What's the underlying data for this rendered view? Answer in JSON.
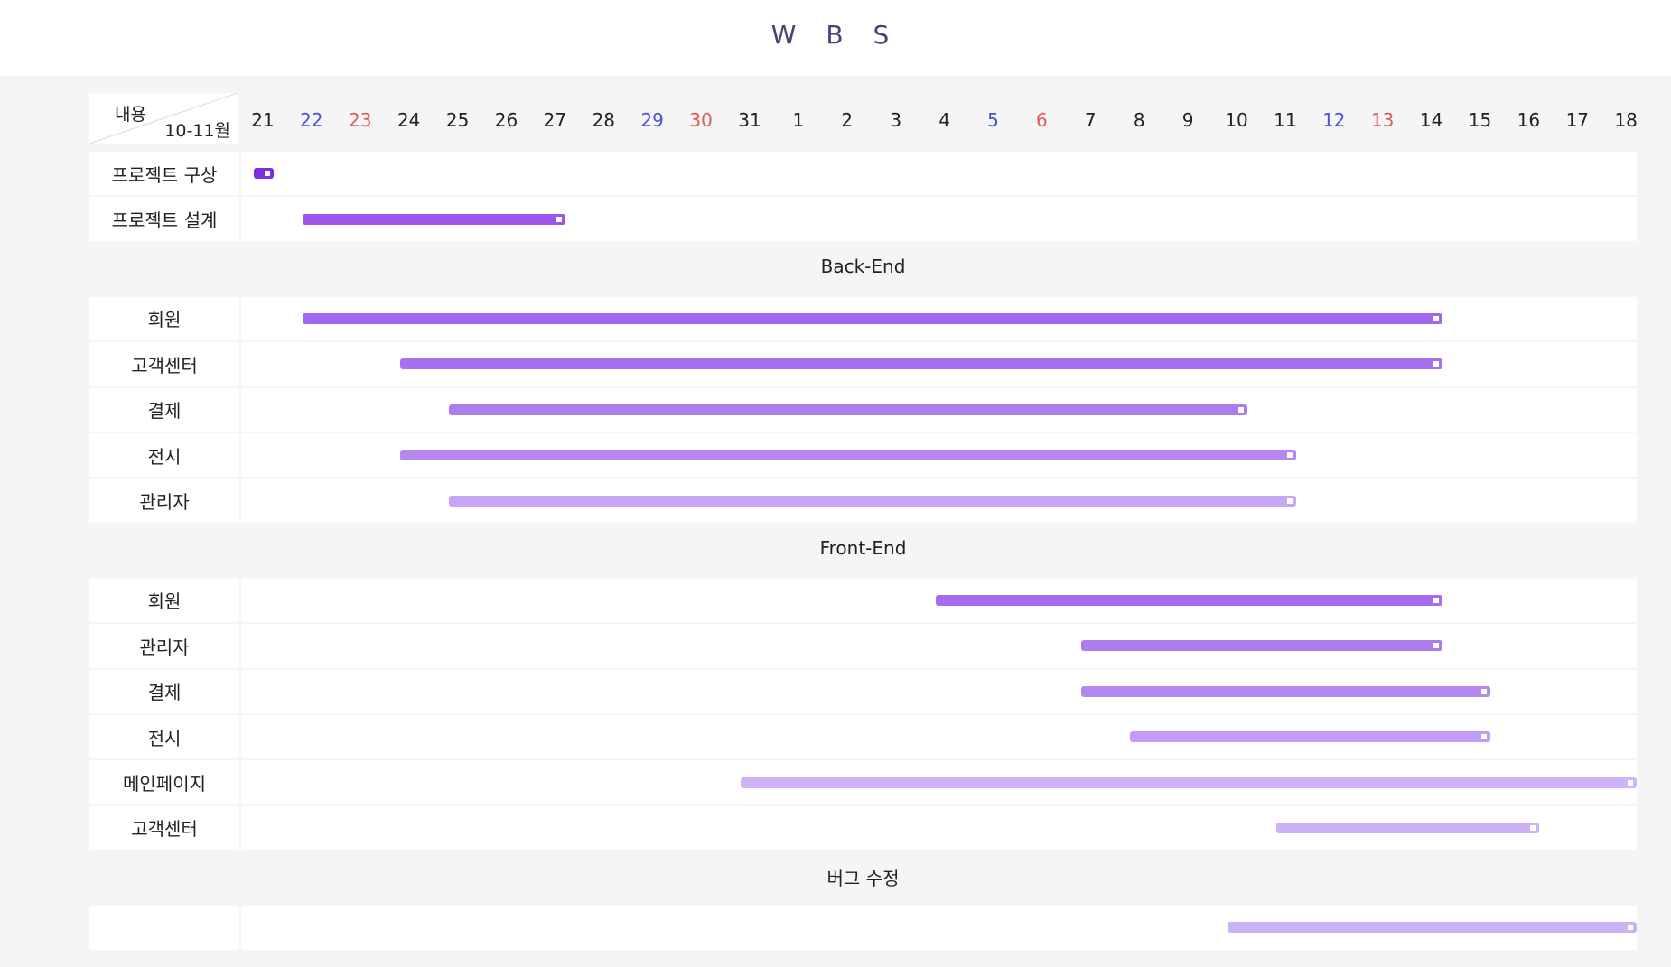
{
  "page": {
    "title": "W B S"
  },
  "header": {
    "corner_top": "내용",
    "corner_bottom": "10-11월"
  },
  "colors": {
    "weekday": "#222222",
    "saturday": "#4a54d6",
    "sunday": "#e05a5a"
  },
  "chart_data": {
    "type": "gantt",
    "title": "W B S",
    "days": [
      {
        "label": "21",
        "kind": "weekday"
      },
      {
        "label": "22",
        "kind": "saturday"
      },
      {
        "label": "23",
        "kind": "sunday"
      },
      {
        "label": "24",
        "kind": "weekday"
      },
      {
        "label": "25",
        "kind": "weekday"
      },
      {
        "label": "26",
        "kind": "weekday"
      },
      {
        "label": "27",
        "kind": "weekday"
      },
      {
        "label": "28",
        "kind": "weekday"
      },
      {
        "label": "29",
        "kind": "saturday"
      },
      {
        "label": "30",
        "kind": "sunday"
      },
      {
        "label": "31",
        "kind": "weekday"
      },
      {
        "label": "1",
        "kind": "weekday"
      },
      {
        "label": "2",
        "kind": "weekday"
      },
      {
        "label": "3",
        "kind": "weekday"
      },
      {
        "label": "4",
        "kind": "weekday"
      },
      {
        "label": "5",
        "kind": "saturday"
      },
      {
        "label": "6",
        "kind": "sunday"
      },
      {
        "label": "7",
        "kind": "weekday"
      },
      {
        "label": "8",
        "kind": "weekday"
      },
      {
        "label": "9",
        "kind": "weekday"
      },
      {
        "label": "10",
        "kind": "weekday"
      },
      {
        "label": "11",
        "kind": "weekday"
      },
      {
        "label": "12",
        "kind": "saturday"
      },
      {
        "label": "13",
        "kind": "sunday"
      },
      {
        "label": "14",
        "kind": "weekday"
      },
      {
        "label": "15",
        "kind": "weekday"
      },
      {
        "label": "16",
        "kind": "weekday"
      },
      {
        "label": "17",
        "kind": "weekday"
      },
      {
        "label": "18",
        "kind": "weekday"
      }
    ],
    "sections": [
      {
        "title": "",
        "tasks": [
          {
            "name": "프로젝트 구상",
            "start": "21",
            "end": "21",
            "color": "#7b2fe0"
          },
          {
            "name": "프로젝트 설계",
            "start": "22",
            "end": "27",
            "color": "#9b55ec"
          }
        ]
      },
      {
        "title": "Back-End",
        "tasks": [
          {
            "name": "회원",
            "start": "22",
            "end": "14",
            "color": "#a366ee"
          },
          {
            "name": "고객센터",
            "start": "24",
            "end": "14",
            "color": "#a670ef"
          },
          {
            "name": "결제",
            "start": "25",
            "end": "10",
            "color": "#ad7df0"
          },
          {
            "name": "전시",
            "start": "24",
            "end": "11",
            "color": "#b487f2"
          },
          {
            "name": "관리자",
            "start": "25",
            "end": "11",
            "color": "#c6a6f5"
          }
        ]
      },
      {
        "title": "Front-End",
        "tasks": [
          {
            "name": "회원",
            "start": "4",
            "end": "14",
            "color": "#a56cef"
          },
          {
            "name": "관리자",
            "start": "7",
            "end": "14",
            "color": "#ad7df0"
          },
          {
            "name": "결제",
            "start": "7",
            "end": "15",
            "color": "#b487f2"
          },
          {
            "name": "전시",
            "start": "8",
            "end": "15",
            "color": "#c19ef4"
          },
          {
            "name": "메인페이지",
            "start": "31",
            "end": "18",
            "color": "#d0b3f7"
          },
          {
            "name": "고객센터",
            "start": "11",
            "end": "16",
            "color": "#cdb0f6"
          }
        ]
      },
      {
        "title": "버그 수정",
        "tasks": [
          {
            "name": "",
            "start": "10",
            "end": "18",
            "color": "#cdb0f6"
          }
        ]
      }
    ]
  }
}
